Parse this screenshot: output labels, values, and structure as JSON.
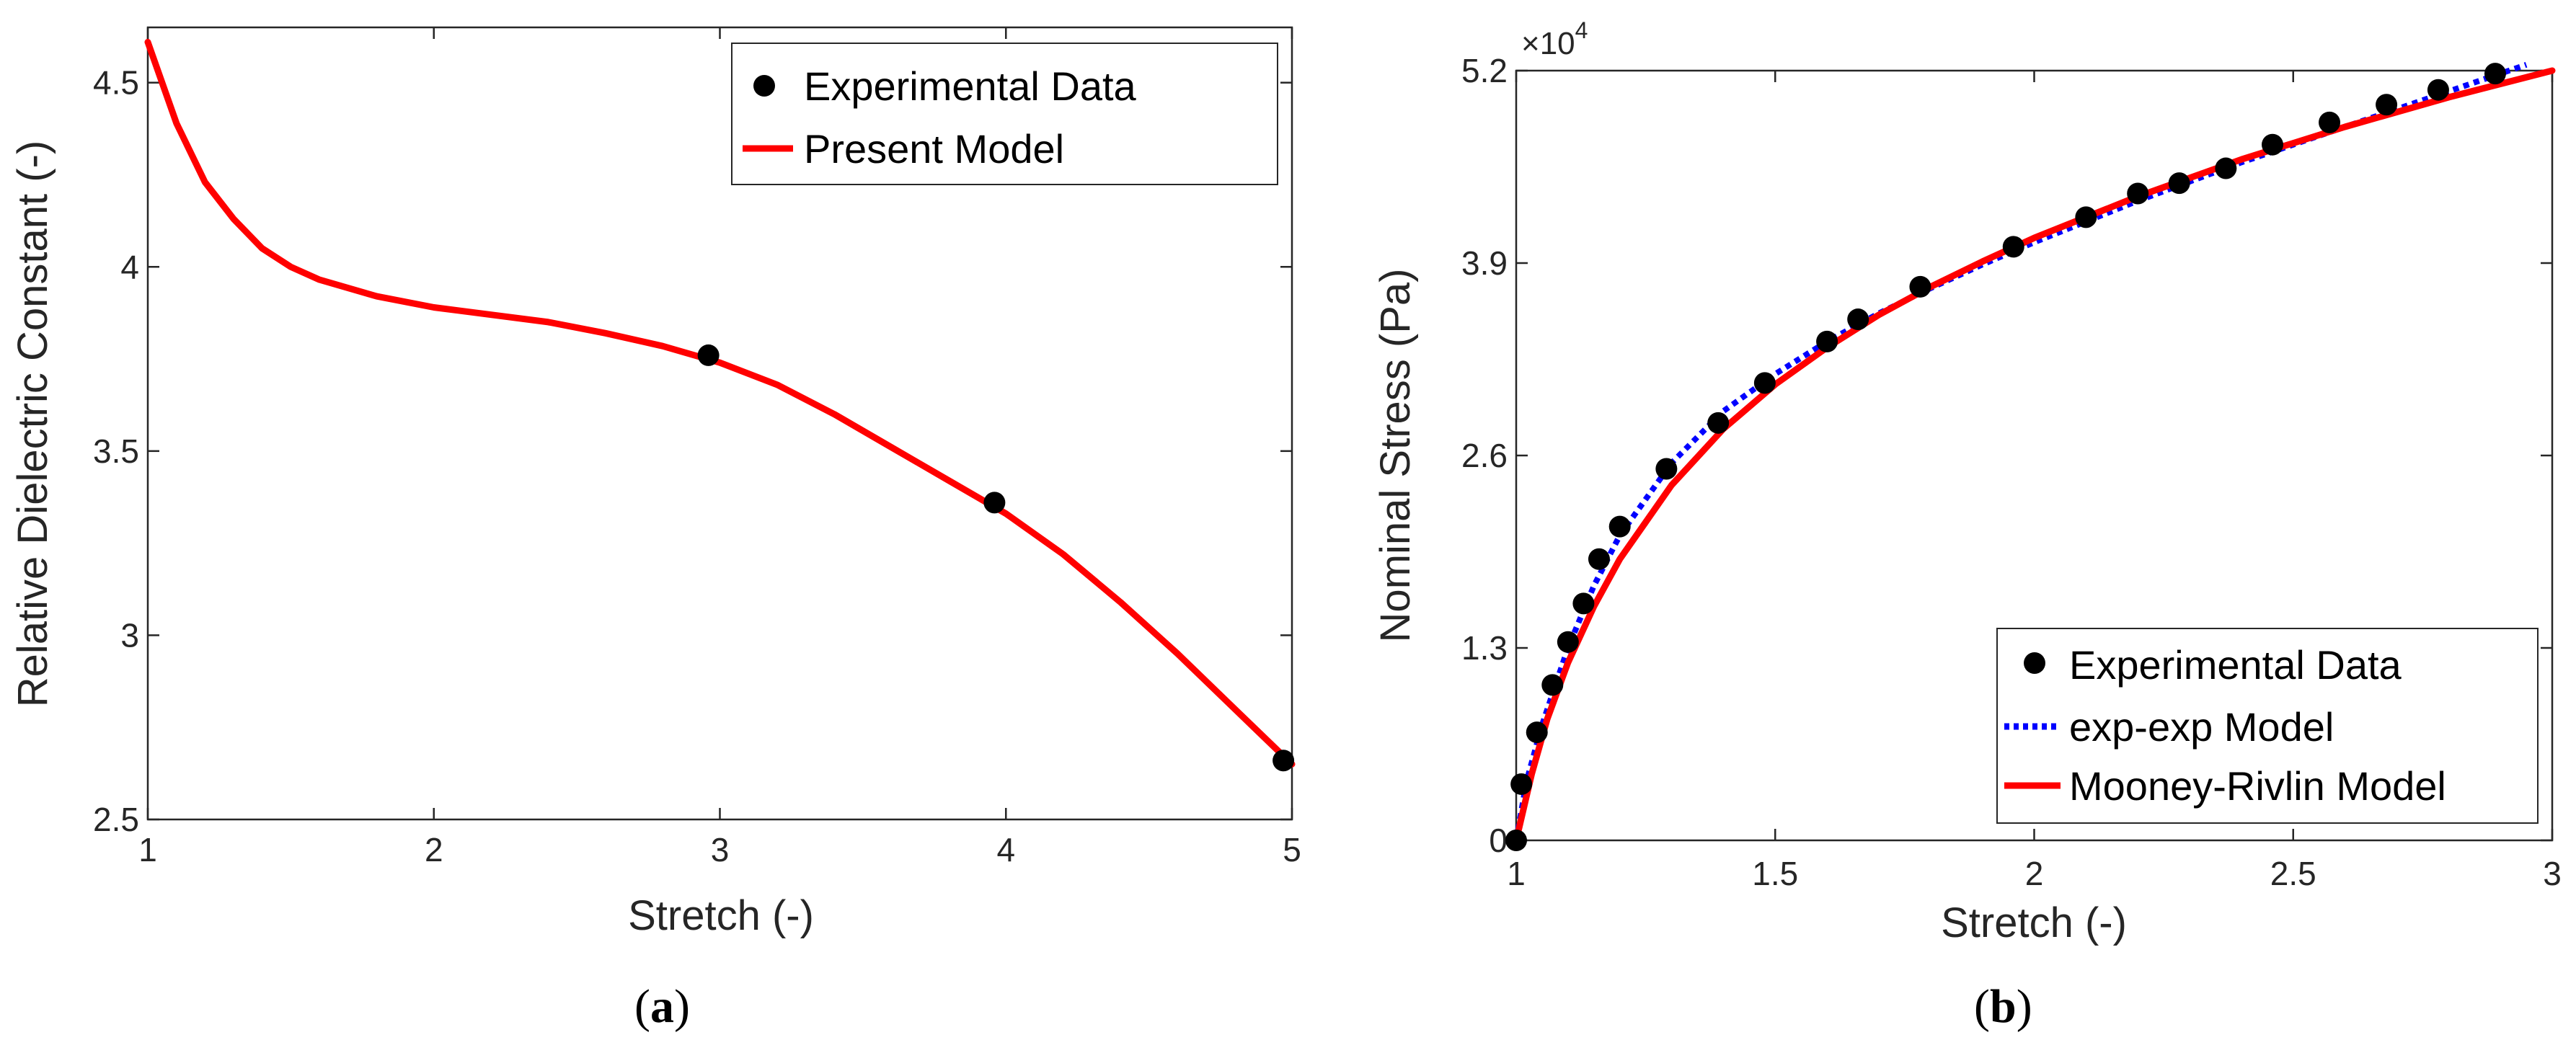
{
  "chart_data": [
    {
      "type": "line",
      "panel": "a",
      "caption": "a",
      "xlabel": "Stretch (-)",
      "ylabel": "Relative Dielectric Constant (-)",
      "xlim": [
        1,
        5
      ],
      "ylim": [
        2.5,
        4.65
      ],
      "xticks": [
        "1",
        "2",
        "3",
        "4",
        "5"
      ],
      "yticks": [
        "2.5",
        "3",
        "3.5",
        "4",
        "4.5"
      ],
      "legend_position": "top-right",
      "grid": false,
      "series": [
        {
          "name": "Experimental Data",
          "kind": "scatter",
          "color": "#000000",
          "points": [
            [
              2.96,
              3.76
            ],
            [
              3.96,
              3.36
            ],
            [
              4.97,
              2.66
            ]
          ]
        },
        {
          "name": "Present Model",
          "kind": "line",
          "color": "#ff0000",
          "points": [
            [
              1.0,
              4.61
            ],
            [
              1.1,
              4.39
            ],
            [
              1.2,
              4.23
            ],
            [
              1.3,
              4.13
            ],
            [
              1.4,
              4.05
            ],
            [
              1.5,
              4.0
            ],
            [
              1.6,
              3.965
            ],
            [
              1.8,
              3.92
            ],
            [
              2.0,
              3.89
            ],
            [
              2.2,
              3.87
            ],
            [
              2.4,
              3.85
            ],
            [
              2.6,
              3.82
            ],
            [
              2.8,
              3.785
            ],
            [
              3.0,
              3.74
            ],
            [
              3.2,
              3.68
            ],
            [
              3.4,
              3.6
            ],
            [
              3.6,
              3.51
            ],
            [
              3.8,
              3.42
            ],
            [
              4.0,
              3.33
            ],
            [
              4.2,
              3.22
            ],
            [
              4.4,
              3.09
            ],
            [
              4.6,
              2.95
            ],
            [
              4.8,
              2.8
            ],
            [
              5.0,
              2.65
            ]
          ]
        }
      ]
    },
    {
      "type": "line",
      "panel": "b",
      "caption": "b",
      "xlabel": "Stretch (-)",
      "ylabel": "Nominal Stress (Pa)",
      "xlim": [
        1,
        3
      ],
      "ylim": [
        0,
        5.2
      ],
      "xticks": [
        "1",
        "1.5",
        "2",
        "2.5",
        "3"
      ],
      "yticks": [
        "0",
        "1.3",
        "2.6",
        "3.9",
        "5.2"
      ],
      "multiplier_base": "×10",
      "multiplier_exp": "4",
      "legend_position": "bottom-right",
      "grid": false,
      "series": [
        {
          "name": "Experimental Data",
          "kind": "scatter",
          "color": "#000000",
          "points": [
            [
              1.0,
              0.0
            ],
            [
              1.01,
              0.38
            ],
            [
              1.04,
              0.73
            ],
            [
              1.07,
              1.05
            ],
            [
              1.1,
              1.34
            ],
            [
              1.13,
              1.6
            ],
            [
              1.16,
              1.9
            ],
            [
              1.2,
              2.12
            ],
            [
              1.29,
              2.51
            ],
            [
              1.39,
              2.82
            ],
            [
              1.48,
              3.09
            ],
            [
              1.6,
              3.37
            ],
            [
              1.66,
              3.52
            ],
            [
              1.78,
              3.74
            ],
            [
              1.96,
              4.01
            ],
            [
              2.1,
              4.21
            ],
            [
              2.2,
              4.37
            ],
            [
              2.28,
              4.44
            ],
            [
              2.37,
              4.54
            ],
            [
              2.46,
              4.7
            ],
            [
              2.57,
              4.85
            ],
            [
              2.68,
              4.97
            ],
            [
              2.78,
              5.07
            ],
            [
              2.89,
              5.18
            ]
          ]
        },
        {
          "name": "exp-exp Model",
          "kind": "dotted",
          "color": "#0000ff",
          "points": [
            [
              1.0,
              0.0
            ],
            [
              1.02,
              0.4
            ],
            [
              1.05,
              0.78
            ],
            [
              1.1,
              1.3
            ],
            [
              1.15,
              1.72
            ],
            [
              1.2,
              2.06
            ],
            [
              1.3,
              2.55
            ],
            [
              1.4,
              2.9
            ],
            [
              1.5,
              3.15
            ],
            [
              1.6,
              3.37
            ],
            [
              1.7,
              3.56
            ],
            [
              1.8,
              3.73
            ],
            [
              1.9,
              3.89
            ],
            [
              2.0,
              4.04
            ],
            [
              2.1,
              4.18
            ],
            [
              2.2,
              4.32
            ],
            [
              2.3,
              4.45
            ],
            [
              2.4,
              4.58
            ],
            [
              2.5,
              4.7
            ],
            [
              2.6,
              4.82
            ],
            [
              2.7,
              4.94
            ],
            [
              2.8,
              5.06
            ],
            [
              2.9,
              5.18
            ],
            [
              2.95,
              5.24
            ]
          ]
        },
        {
          "name": "Mooney-Rivlin Model",
          "kind": "line",
          "color": "#ff0000",
          "points": [
            [
              1.0,
              0.0
            ],
            [
              1.03,
              0.45
            ],
            [
              1.06,
              0.82
            ],
            [
              1.1,
              1.2
            ],
            [
              1.15,
              1.58
            ],
            [
              1.2,
              1.9
            ],
            [
              1.3,
              2.4
            ],
            [
              1.4,
              2.78
            ],
            [
              1.5,
              3.08
            ],
            [
              1.6,
              3.33
            ],
            [
              1.7,
              3.55
            ],
            [
              1.8,
              3.74
            ],
            [
              1.9,
              3.91
            ],
            [
              2.0,
              4.07
            ],
            [
              2.2,
              4.35
            ],
            [
              2.4,
              4.6
            ],
            [
              2.6,
              4.82
            ],
            [
              2.8,
              5.02
            ],
            [
              3.0,
              5.2
            ]
          ]
        }
      ]
    }
  ]
}
